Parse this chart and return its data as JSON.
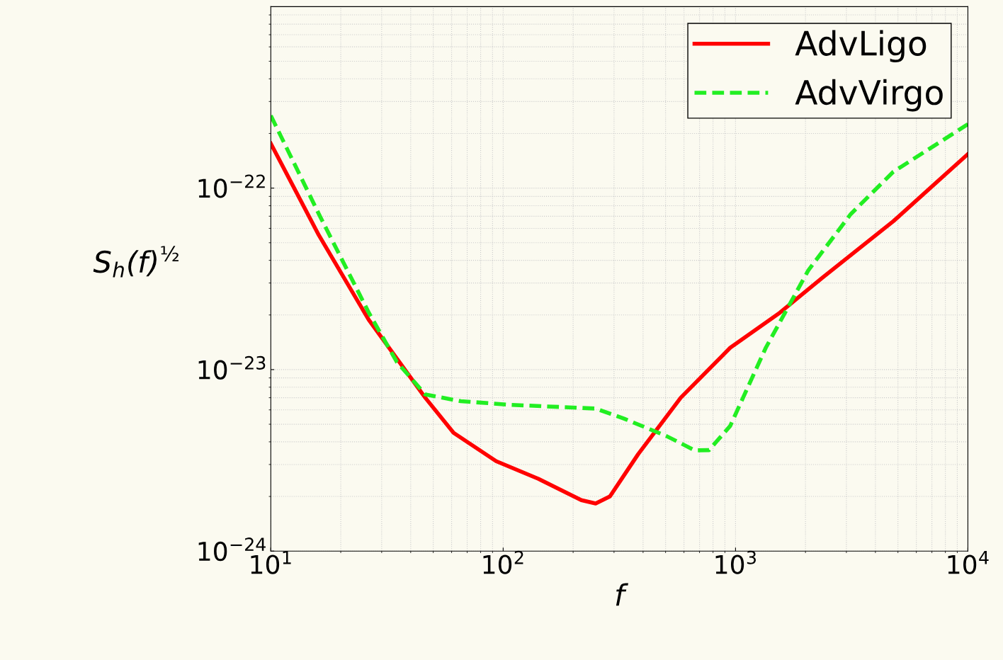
{
  "chart_data": {
    "type": "line",
    "xlabel": "f",
    "ylabel": "S$_{h}$(f)$^{½}$",
    "log": "xy",
    "grid": true,
    "legend": "top right",
    "xlim": [
      10,
      10000
    ],
    "ylim": [
      1e-24,
      1e-21
    ],
    "xticks": [
      {
        "value": 10,
        "label": "10$^{1}$"
      },
      {
        "value": 100,
        "label": "10$^{2}$"
      },
      {
        "value": 1000,
        "label": "10$^{3}$"
      },
      {
        "value": 10000,
        "label": "10$^{4}$"
      }
    ],
    "yticks": [
      {
        "value": 1e-24,
        "label": "10$^{−24}$"
      },
      {
        "value": 1e-23,
        "label": "10$^{−23}$"
      },
      {
        "value": 1e-22,
        "label": "10$^{−22}$"
      }
    ],
    "series": [
      {
        "name": "AdvLigo",
        "color": "#ff0000",
        "line_style": "solid",
        "x": [
          10,
          16.1,
          26.4,
          46.2,
          61.2,
          93.3,
          142,
          217,
          250,
          288,
          381,
          581,
          949,
          1553,
          2366,
          4777,
          10000
        ],
        "values": [
          1.76e-22,
          5.5e-23,
          1.88e-23,
          7e-24,
          4.48e-24,
          3.13e-24,
          2.5e-24,
          1.91e-24,
          1.83e-24,
          2e-24,
          3.42e-24,
          7e-24,
          1.32e-23,
          2.06e-23,
          3.21e-23,
          6.57e-23,
          1.54e-22
        ]
      },
      {
        "name": "AdvVirgo",
        "color": "#22ee22",
        "line_style": "dashed",
        "x": [
          10,
          16.1,
          26.4,
          34.9,
          46.2,
          65.7,
          107,
          250,
          331,
          505,
          668,
          769,
          949,
          1350,
          2056,
          3135,
          4777,
          10000
        ],
        "values": [
          2.51e-22,
          7.2e-23,
          2.06e-23,
          1.1e-23,
          7.3e-24,
          6.7e-24,
          6.4e-24,
          6.1e-24,
          5.37e-24,
          4.3e-24,
          3.59e-24,
          3.6e-24,
          4.9e-24,
          1.32e-23,
          3.52e-23,
          7.2e-23,
          1.23e-22,
          2.25e-22
        ]
      }
    ]
  }
}
